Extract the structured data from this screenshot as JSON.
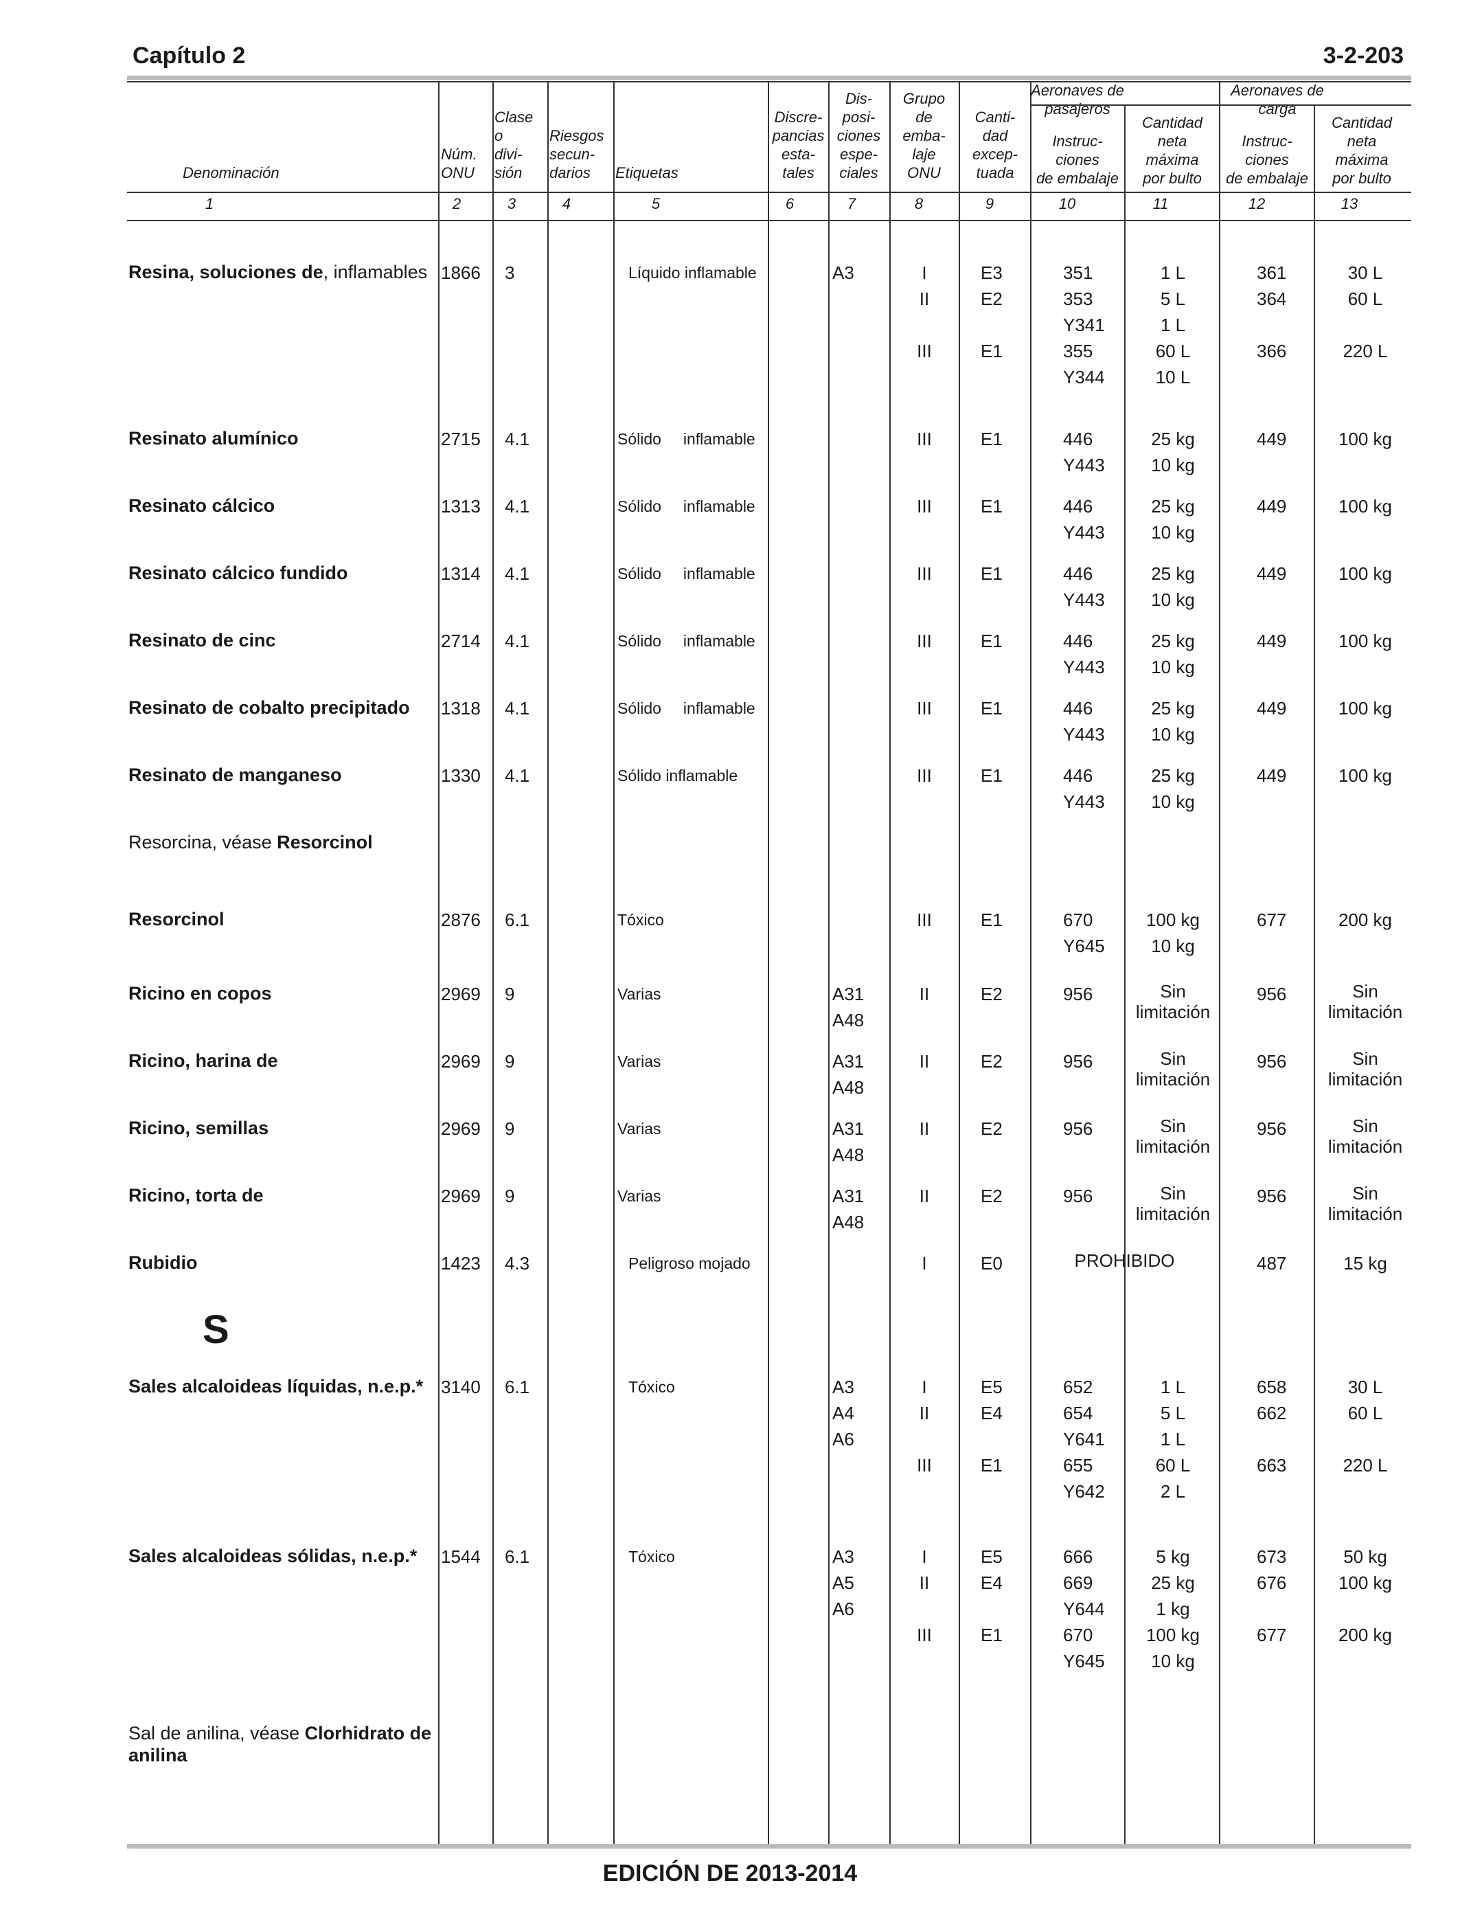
{
  "header": {
    "chapter": "Capítulo 2",
    "page_ref": "3-2-203"
  },
  "columns": {
    "passenger_group": "Aeronaves de pasajeros",
    "cargo_group": "Aeronaves de carga",
    "h1": "Denominación",
    "h2": "Núm.\nONU",
    "h3": "Clase\no\ndivi-\nsión",
    "h4": "Riesgos\nsecun-\ndarios",
    "h5": "Etiquetas",
    "h6": "Discre-\npancias\nesta-\ntales",
    "h7": "Dis-\nposi-\nciones\nespe-\nciales",
    "h8": "Grupo\nde\nemba-\nlaje\nONU",
    "h9": "Canti-\ndad\nexcep-\ntuada",
    "h10": "Instruc-\nciones\nde embalaje",
    "h11": "Cantidad\nneta\nmáxima\npor bulto",
    "h12": "Instruc-\nciones\nde embalaje",
    "h13": "Cantidad\nneta\nmáxima\npor bulto",
    "numbers": [
      "1",
      "2",
      "3",
      "4",
      "5",
      "6",
      "7",
      "8",
      "9",
      "10",
      "11",
      "12",
      "13"
    ]
  },
  "rows": [
    {
      "name_b": "Resina, soluciones de",
      "name_r": ", inflamables",
      "un": "1866",
      "cls": "3",
      "label": "Líquido inflamable",
      "sp": "A3",
      "pg": "I\nII\n\nIII",
      "eq": "E3\nE2\n\nE1",
      "pi": "351\n353\nY341\n355\nY344",
      "pq": "1 L\n5 L\n1 L\n60 L\n10 L",
      "ci": "361\n364\n\n366",
      "cq": "30 L\n60 L\n\n220 L"
    },
    {
      "name_b": "Resinato alumínico",
      "un": "2715",
      "cls": "4.1",
      "label": "Sólido     inflamable",
      "pg": "III",
      "eq": "E1",
      "pi": "446\nY443",
      "pq": "25 kg\n10 kg",
      "ci": "449",
      "cq": "100 kg"
    },
    {
      "name_b": "Resinato cálcico",
      "un": "1313",
      "cls": "4.1",
      "label": "Sólido     inflamable",
      "pg": "III",
      "eq": "E1",
      "pi": "446\nY443",
      "pq": "25 kg\n10 kg",
      "ci": "449",
      "cq": "100 kg"
    },
    {
      "name_b": "Resinato cálcico fundido",
      "un": "1314",
      "cls": "4.1",
      "label": "Sólido     inflamable",
      "pg": "III",
      "eq": "E1",
      "pi": "446\nY443",
      "pq": "25 kg\n10 kg",
      "ci": "449",
      "cq": "100 kg"
    },
    {
      "name_b": "Resinato de cinc",
      "un": "2714",
      "cls": "4.1",
      "label": "Sólido     inflamable",
      "pg": "III",
      "eq": "E1",
      "pi": "446\nY443",
      "pq": "25 kg\n10 kg",
      "ci": "449",
      "cq": "100 kg"
    },
    {
      "name_b": "Resinato de cobalto precipitado",
      "un": "1318",
      "cls": "4.1",
      "label": "Sólido     inflamable",
      "pg": "III",
      "eq": "E1",
      "pi": "446\nY443",
      "pq": "25 kg\n10 kg",
      "ci": "449",
      "cq": "100 kg"
    },
    {
      "name_b": "Resinato de manganeso",
      "un": "1330",
      "cls": "4.1",
      "label": "Sólido inflamable",
      "pg": "III",
      "eq": "E1",
      "pi": "446\nY443",
      "pq": "25 kg\n10 kg",
      "ci": "449",
      "cq": "100 kg"
    },
    {
      "name_r0": "Resorcina, véase ",
      "name_b": "Resorcinol"
    },
    {
      "name_b": "Resorcinol",
      "un": "2876",
      "cls": "6.1",
      "label": "Tóxico",
      "pg": "III",
      "eq": "E1",
      "pi": "670\nY645",
      "pq": "100 kg\n10 kg",
      "ci": "677",
      "cq": "200 kg"
    },
    {
      "name_b": "Ricino en copos",
      "un": "2969",
      "cls": "9",
      "label": "Varias",
      "sp": "A31\nA48",
      "pg": "II",
      "eq": "E2",
      "pi": "956",
      "pq": "Sin\nlimitación",
      "ci": "956",
      "cq": "Sin\nlimitación"
    },
    {
      "name_b": "Ricino, harina de",
      "un": "2969",
      "cls": "9",
      "label": "Varias",
      "sp": "A31\nA48",
      "pg": "II",
      "eq": "E2",
      "pi": "956",
      "pq": "Sin\nlimitación",
      "ci": "956",
      "cq": "Sin\nlimitación"
    },
    {
      "name_b": "Ricino, semillas",
      "un": "2969",
      "cls": "9",
      "label": "Varias",
      "sp": "A31\nA48",
      "pg": "II",
      "eq": "E2",
      "pi": "956",
      "pq": "Sin\nlimitación",
      "ci": "956",
      "cq": "Sin\nlimitación"
    },
    {
      "name_b": "Ricino, torta de",
      "un": "2969",
      "cls": "9",
      "label": "Varias",
      "sp": "A31\nA48",
      "pg": "II",
      "eq": "E2",
      "pi": "956",
      "pq": "Sin\nlimitación",
      "ci": "956",
      "cq": "Sin\nlimitación"
    },
    {
      "name_b": "Rubidio",
      "un": "1423",
      "cls": "4.3",
      "label": "Peligroso mojado",
      "pg": "I",
      "eq": "E0",
      "forbidden": "PROHIBIDO",
      "ci": "487",
      "cq": "15 kg"
    },
    {
      "letter": "S"
    },
    {
      "name_b": "Sales alcaloideas líquidas, n.e.p.*",
      "un": "3140",
      "cls": "6.1",
      "label": "Tóxico",
      "sp": "A3\nA4\nA6",
      "pg": "I\nII\n\nIII",
      "eq": "E5\nE4\n\nE1",
      "pi": "652\n654\nY641\n655\nY642",
      "pq": "1 L\n5 L\n1 L\n60 L\n2 L",
      "ci": "658\n662\n\n663",
      "cq": "30 L\n60 L\n\n220 L"
    },
    {
      "name_b": "Sales alcaloideas sólidas, n.e.p.*",
      "un": "1544",
      "cls": "6.1",
      "label": "Tóxico",
      "sp": "A3\nA5\nA6",
      "pg": "I\nII\n\nIII",
      "eq": "E5\nE4\n\nE1",
      "pi": "666\n669\nY644\n670\nY645",
      "pq": "5 kg\n25 kg\n1 kg\n100 kg\n10 kg",
      "ci": "673\n676\n\n677",
      "cq": "50 kg\n100 kg\n\n200 kg"
    },
    {
      "name_r0": "Sal de anilina, véase ",
      "name_b": "Clorhidrato de anilina"
    }
  ],
  "footer": {
    "edition": "EDICIÓN DE 2013-2014"
  }
}
